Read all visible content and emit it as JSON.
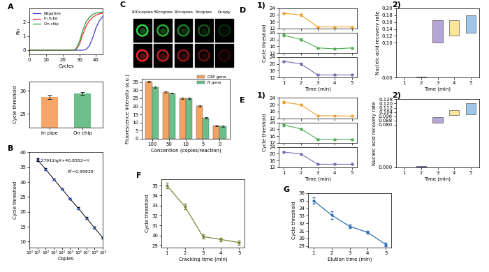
{
  "chart_data": [
    {
      "type": "line",
      "annotations": [
        "A"
      ],
      "xlabel": "Cycles",
      "ylabel": "Rn",
      "x": [
        0,
        2,
        4,
        6,
        8,
        10,
        12,
        14,
        16,
        18,
        20,
        22,
        24,
        26,
        28,
        30,
        32,
        34,
        36,
        38,
        40,
        42,
        44
      ],
      "series": [
        {
          "name": "Negative",
          "color": "#3b3bd6",
          "values": [
            0,
            0,
            0,
            0,
            0,
            0,
            0,
            0,
            0,
            0,
            0,
            0,
            0,
            0,
            0,
            0,
            0,
            0.05,
            0.3,
            0.9,
            1.6,
            2.1,
            2.4
          ]
        },
        {
          "name": "In tube",
          "color": "#e0302a",
          "values": [
            0,
            0,
            0,
            0,
            0,
            0,
            0,
            0,
            0,
            0,
            0,
            0,
            0,
            0,
            0.05,
            0.4,
            1.1,
            1.7,
            2.1,
            2.35,
            2.5,
            2.6,
            2.65
          ]
        },
        {
          "name": "On chip",
          "color": "#2a9d3a",
          "values": [
            0,
            0,
            0,
            0,
            0,
            0,
            0,
            0,
            0,
            0,
            0,
            0,
            0,
            0,
            0.1,
            0.6,
            1.4,
            2.0,
            2.35,
            2.55,
            2.65,
            2.7,
            2.72
          ]
        }
      ],
      "xlim": [
        0,
        44
      ],
      "xticks": [
        0,
        10,
        20,
        30,
        40
      ],
      "ylim": [
        -0.3,
        3.0
      ],
      "yticks": [
        0,
        1,
        2
      ],
      "legend": "upper left"
    },
    {
      "type": "bar",
      "ylabel": "Cycle threshold",
      "categories": [
        "In pipe",
        "On chip"
      ],
      "values": [
        28.7,
        29.4
      ],
      "errors": [
        0.5,
        0.3
      ],
      "colors": [
        "#f5a66b",
        "#6dbf8a"
      ],
      "ylim": [
        22,
        32
      ],
      "yticks": [
        25,
        30
      ]
    },
    {
      "type": "line",
      "annotations": [
        "B",
        "-3.27911lgX+40.8352=Y",
        "R²=0.99929"
      ],
      "xlabel": "Copies",
      "ylabel": "Cycle threshold",
      "log": "x",
      "marker": "s",
      "color": "#000000",
      "x": [
        10,
        100,
        1000,
        10000,
        100000,
        1000000,
        10000000,
        100000000,
        1000000000
      ],
      "values": [
        37.55,
        34.3,
        31.0,
        27.7,
        24.4,
        21.2,
        17.9,
        14.6,
        11.3
      ],
      "errors": [
        0.4,
        0.3,
        0.3,
        0.3,
        0.3,
        0.3,
        0.3,
        0.3,
        0.3
      ],
      "xlim": [
        1,
        1000000000
      ],
      "xticks": [
        {
          "value": 1,
          "label": "10⁰"
        },
        {
          "value": 10,
          "label": "10¹"
        },
        {
          "value": 100,
          "label": "10²"
        },
        {
          "value": 1000,
          "label": "10³"
        },
        {
          "value": 10000,
          "label": "10⁴"
        },
        {
          "value": 100000,
          "label": "10⁵"
        },
        {
          "value": 1000000,
          "label": "10⁶"
        },
        {
          "value": 10000000,
          "label": "10⁷"
        },
        {
          "value": 100000000,
          "label": "10⁸"
        },
        {
          "value": 1000000000,
          "label": "10⁹"
        }
      ],
      "ylim": [
        8,
        40
      ],
      "yticks": [
        10,
        15,
        20,
        25,
        30,
        35,
        40
      ]
    },
    {
      "type": "image_grid",
      "annotations": [
        "C"
      ],
      "categories": [
        "100copies",
        "50copies",
        "10copies",
        "5copies",
        "0copy"
      ],
      "colors": [
        "#2ecc40",
        "#e8262b"
      ]
    },
    {
      "type": "bar",
      "xlabel": "Concention (copies/reaction)",
      "ylabel": "Fluorescence intensity (a.u.)",
      "categories": [
        "100",
        "50",
        "10",
        "5",
        "0"
      ],
      "series": [
        {
          "name": "ORF gene",
          "color": "#f4a261",
          "values": [
            35.2,
            28.8,
            25.0,
            20.3,
            8.0
          ],
          "errors": [
            0.5,
            0.4,
            0.4,
            0.5,
            0.3
          ]
        },
        {
          "name": "N gene",
          "color": "#6dbf8a",
          "values": [
            32.0,
            28.2,
            24.8,
            13.0,
            7.8
          ],
          "errors": [
            0.5,
            0.4,
            0.4,
            0.4,
            0.3
          ]
        }
      ],
      "ylim": [
        0,
        37
      ],
      "yticks": [
        0,
        5,
        10,
        15,
        20,
        25,
        30,
        35
      ],
      "legend": "upper right"
    },
    {
      "type": "line",
      "annotations": [
        "D",
        "1)"
      ],
      "xlabel": "Time (min)",
      "ylabel": "Cycle threshold",
      "marker": "o",
      "x": [
        1,
        2,
        3,
        4,
        5
      ],
      "series": [
        {
          "color": "#f0a030",
          "values": [
            21.0,
            20.0,
            13.0,
            13.0,
            13.0
          ],
          "errors": [
            0.6,
            0.6,
            0.2,
            0.2,
            0.2
          ]
        },
        {
          "color": "#4caf50",
          "values": [
            22.5,
            20.0,
            15.0,
            14.5,
            15.0
          ],
          "errors": [
            0.6,
            0.5,
            0.2,
            0.2,
            0.2
          ]
        },
        {
          "color": "#7b68b0",
          "values": [
            21.5,
            20.0,
            13.5,
            13.5,
            13.5
          ],
          "errors": [
            0.6,
            0.5,
            0.2,
            0.2,
            0.2
          ]
        }
      ],
      "xlim": [
        0.7,
        5.3
      ],
      "xticks": [
        1,
        2,
        3,
        4,
        5
      ],
      "ylim": [
        12,
        24
      ],
      "yticks": [
        12,
        16,
        20,
        24
      ]
    },
    {
      "type": "floating_bar",
      "annotations": [
        "2)"
      ],
      "xlabel": "Time (min)",
      "ylabel": "Nucleic acid recovery rate",
      "x": [
        2,
        3,
        4,
        5
      ],
      "low": [
        0.0,
        0.1,
        0.12,
        0.13
      ],
      "high": [
        0.003,
        0.165,
        0.165,
        0.18
      ],
      "colors": [
        "#7b68b0",
        "#b4a7d6",
        "#ffe599",
        "#9fc5e8"
      ],
      "xlim": [
        0.5,
        5.5
      ],
      "xticks": [
        1,
        2,
        3,
        4,
        5
      ],
      "ylim": [
        0,
        0.2
      ],
      "yticks": [
        {
          "value": 0,
          "label": "0.00"
        },
        {
          "value": 0.1,
          "label": "0.10"
        },
        {
          "value": 0.12,
          "label": "0.12"
        },
        {
          "value": 0.14,
          "label": "0.14"
        },
        {
          "value": 0.16,
          "label": "0.16"
        },
        {
          "value": 0.18,
          "label": "0.18"
        },
        {
          "value": 0.2,
          "label": "0.20"
        }
      ]
    },
    {
      "type": "line",
      "annotations": [
        "E",
        "1)"
      ],
      "xlabel": "Time (min)",
      "ylabel": "Cycle threshold",
      "marker": "o",
      "x": [
        1,
        2,
        3,
        4,
        5
      ],
      "series": [
        {
          "color": "#f0a030",
          "values": [
            21.5,
            20.0,
            13.5,
            13.5,
            13.3
          ],
          "errors": [
            0.6,
            0.5,
            0.2,
            0.2,
            0.2
          ]
        },
        {
          "color": "#4caf50",
          "values": [
            22.5,
            20.2,
            14.0,
            14.0,
            14.0
          ],
          "errors": [
            0.6,
            0.5,
            0.2,
            0.2,
            0.2
          ]
        },
        {
          "color": "#7b68b0",
          "values": [
            21.0,
            19.8,
            13.8,
            13.8,
            13.8
          ],
          "errors": [
            0.5,
            0.5,
            0.2,
            0.2,
            0.2
          ]
        }
      ],
      "xlim": [
        0.7,
        5.3
      ],
      "xticks": [
        1,
        2,
        3,
        4,
        5
      ],
      "ylim": [
        12,
        24
      ],
      "yticks": [
        12,
        16,
        20,
        24
      ]
    },
    {
      "type": "floating_bar",
      "annotations": [
        "2)"
      ],
      "xlabel": "Time (min)",
      "ylabel": "Nucleic acid recovery rate",
      "x": [
        2,
        3,
        4,
        5
      ],
      "low": [
        0.0,
        0.084,
        0.098,
        0.1
      ],
      "high": [
        0.002,
        0.094,
        0.108,
        0.12
      ],
      "colors": [
        "#7b68b0",
        "#b4a7d6",
        "#ffe599",
        "#9fc5e8"
      ],
      "xlim": [
        0.5,
        5.5
      ],
      "xticks": [
        1,
        2,
        3,
        4,
        5
      ],
      "ylim": [
        0,
        0.128
      ],
      "yticks": [
        {
          "value": 0,
          "label": "0.000"
        },
        {
          "value": 0.08,
          "label": "0.080"
        },
        {
          "value": 0.088,
          "label": "0.088"
        },
        {
          "value": 0.096,
          "label": "0.096"
        },
        {
          "value": 0.104,
          "label": "0.104"
        },
        {
          "value": 0.112,
          "label": "0.112"
        },
        {
          "value": 0.12,
          "label": "0.120"
        },
        {
          "value": 0.128,
          "label": "0.128"
        }
      ]
    },
    {
      "type": "line",
      "annotations": [
        "F"
      ],
      "xlabel": "Cracking time (min)",
      "ylabel": "Cycle threshold",
      "marker": "o",
      "color": "#7a8a3a",
      "x": [
        1,
        2,
        3,
        4,
        5
      ],
      "values": [
        35.0,
        32.9,
        29.9,
        29.6,
        29.3
      ],
      "errors": [
        0.3,
        0.3,
        0.2,
        0.2,
        0.2
      ],
      "xlim": [
        0.7,
        5.3
      ],
      "xticks": [
        1,
        2,
        3,
        4,
        5
      ],
      "ylim": [
        28.8,
        35.6
      ],
      "yticks": [
        29,
        30,
        31,
        32,
        33,
        34,
        35
      ]
    },
    {
      "type": "line",
      "annotations": [
        "G"
      ],
      "xlabel": "Elution time (min)",
      "ylabel": "Cycle threshold",
      "marker": "o",
      "color": "#2f6fb5",
      "x": [
        1,
        2,
        3,
        4,
        5
      ],
      "values": [
        35.0,
        33.1,
        31.6,
        30.8,
        29.2
      ],
      "errors": [
        0.4,
        0.5,
        0.2,
        0.2,
        0.2
      ],
      "xlim": [
        0.7,
        5.3
      ],
      "xticks": [
        1,
        2,
        3,
        4,
        5
      ],
      "ylim": [
        28.8,
        36
      ],
      "yticks": [
        29,
        30,
        31,
        32,
        33,
        34,
        35,
        36
      ]
    }
  ]
}
